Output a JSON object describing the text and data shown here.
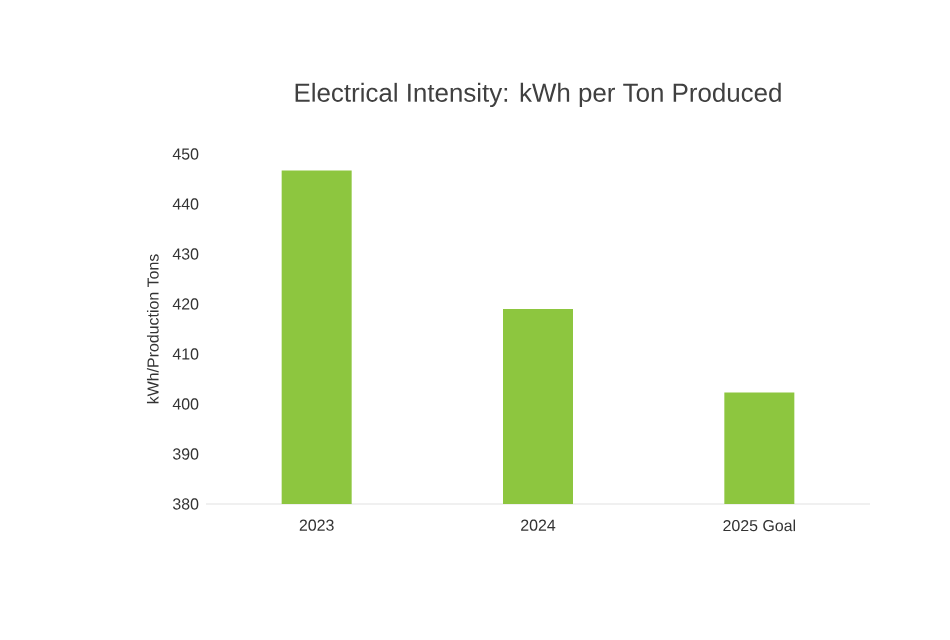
{
  "chart_data": {
    "type": "bar",
    "title": "Electrical Intensity: kWh per Ton Produced",
    "ylabel": "kWh/Production Tons",
    "categories": [
      "2023",
      "2024",
      "2025 Goal"
    ],
    "values": [
      446.7,
      419,
      402.3
    ],
    "color": "#8dc63f",
    "ylim": [
      380,
      450
    ],
    "yticks": [
      380,
      390,
      400,
      410,
      420,
      430,
      440,
      450
    ]
  }
}
